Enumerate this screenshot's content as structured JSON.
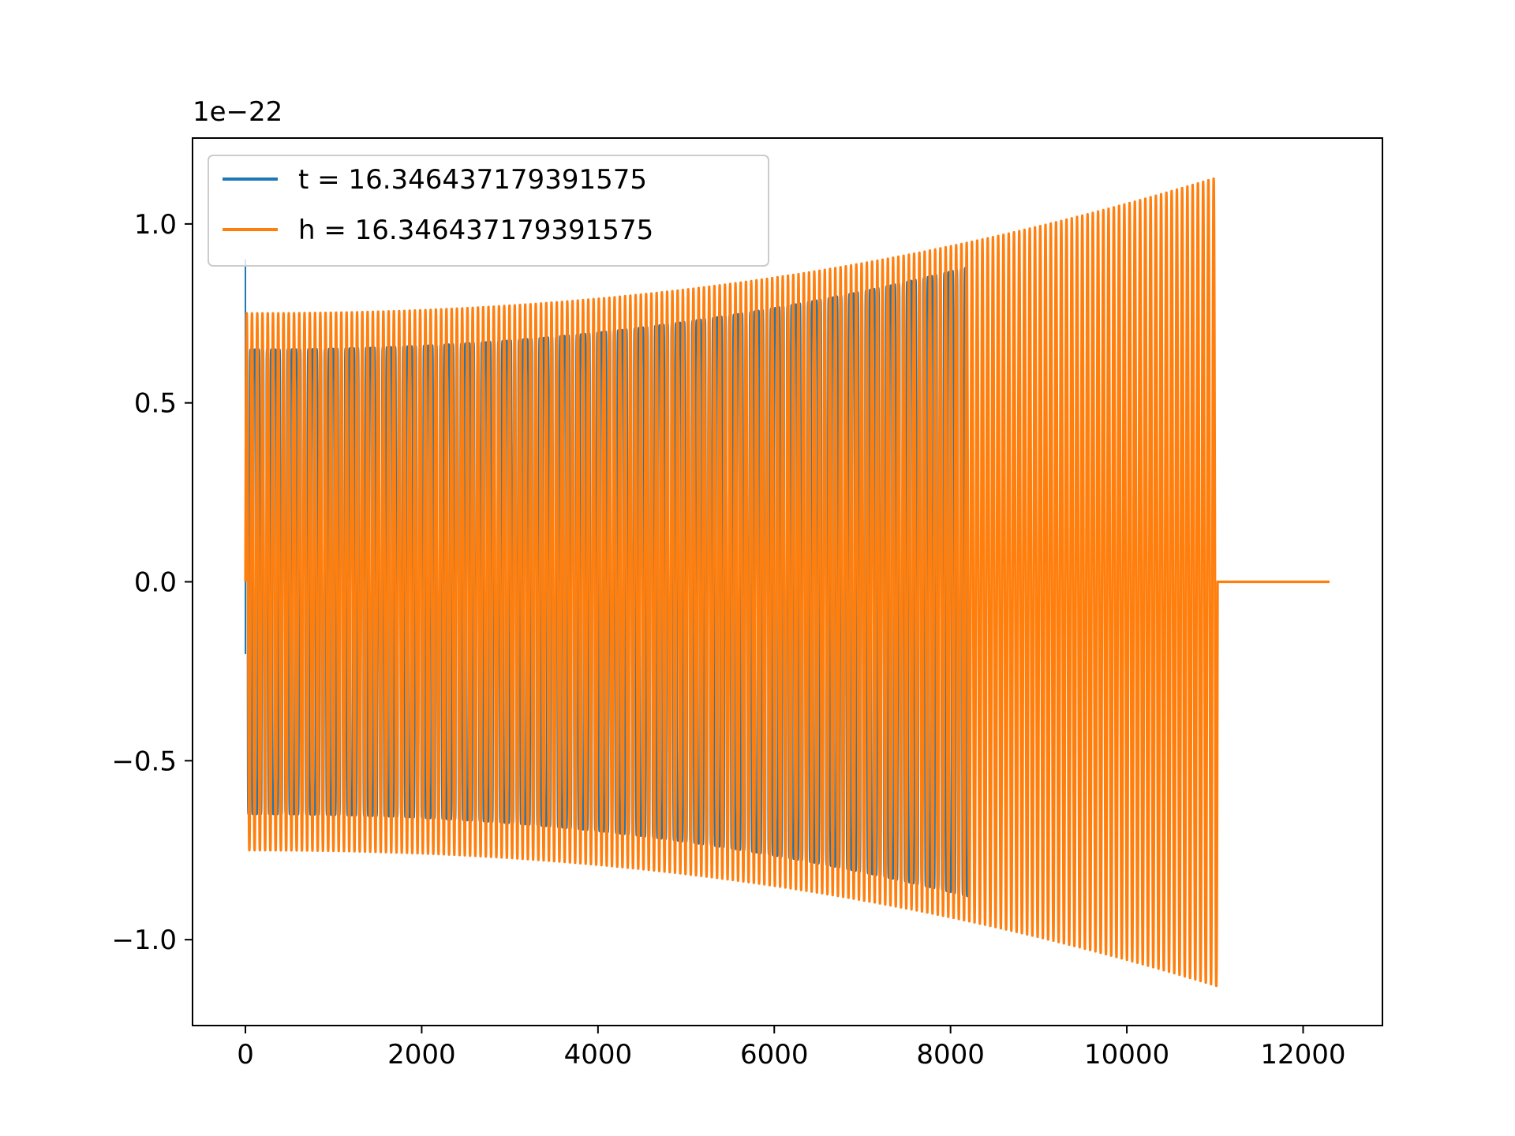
{
  "chart_data": {
    "type": "line",
    "title": "",
    "xlabel": "",
    "ylabel": "",
    "offset_text": "1e−22",
    "xlim": [
      -600,
      12900
    ],
    "ylim": [
      -1.24,
      1.24
    ],
    "grid": false,
    "legend_position": "upper-left",
    "x_ticks": [
      {
        "value": 0,
        "label": "0"
      },
      {
        "value": 2000,
        "label": "2000"
      },
      {
        "value": 4000,
        "label": "4000"
      },
      {
        "value": 6000,
        "label": "6000"
      },
      {
        "value": 8000,
        "label": "8000"
      },
      {
        "value": 10000,
        "label": "10000"
      },
      {
        "value": 12000,
        "label": "12000"
      }
    ],
    "y_ticks": [
      {
        "value": -1.0,
        "label": "−1.0"
      },
      {
        "value": -0.5,
        "label": "−0.5"
      },
      {
        "value": 0.0,
        "label": "0.0"
      },
      {
        "value": 0.5,
        "label": "0.5"
      },
      {
        "value": 1.0,
        "label": "1.0"
      }
    ],
    "series": [
      {
        "name": "t = 16.346437179391575",
        "color": "#1f77b4",
        "spike": {
          "x": 0,
          "y_max": 0.9,
          "y_min": -0.2
        },
        "x_start": 0,
        "x_end": 8200,
        "amp_start": 0.65,
        "amp_end": 0.88,
        "cycles": 175,
        "squareness": 4.0
      },
      {
        "name": "h = 16.346437179391575",
        "color": "#ff7f0e",
        "x_start": 0,
        "x_end": 11030,
        "amp_start": 0.75,
        "amp_end": 1.13,
        "cycles": 185,
        "squareness": 1.0,
        "tail": {
          "x_start": 11030,
          "x_end": 12300,
          "y": 0.0
        }
      }
    ]
  }
}
